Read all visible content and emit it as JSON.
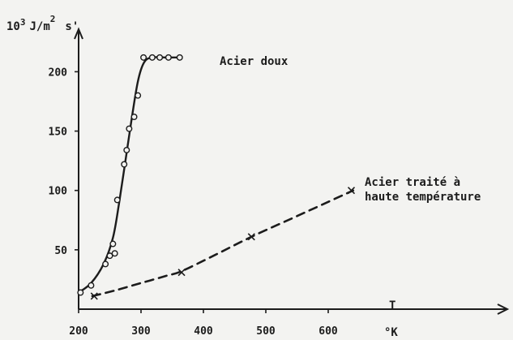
{
  "chart_data": {
    "type": "line",
    "xlabel": "T",
    "xunit": "°K",
    "ylabel_prefix": "10",
    "ylabel_exp": "3",
    "ylabel_unit": "J/m",
    "ylabel_unit_exp": "2",
    "ylabel_suffix": "s'",
    "xlim": [
      200,
      660
    ],
    "ylim": [
      0,
      220
    ],
    "x_ticks": [
      200,
      300,
      400,
      500,
      600
    ],
    "y_ticks": [
      50,
      100,
      150,
      200
    ],
    "grid": false,
    "series": [
      {
        "name": "Acier doux",
        "line_style": "solid",
        "marker": "circle",
        "points": [
          [
            203,
            14
          ],
          [
            220,
            20
          ],
          [
            243,
            38
          ],
          [
            250,
            45
          ],
          [
            255,
            55
          ],
          [
            258,
            47
          ],
          [
            262,
            92
          ],
          [
            273,
            122
          ],
          [
            277,
            134
          ],
          [
            281,
            152
          ],
          [
            289,
            162
          ],
          [
            295,
            180
          ],
          [
            304,
            212
          ],
          [
            318,
            212
          ],
          [
            330,
            212
          ],
          [
            344,
            212
          ],
          [
            362,
            212
          ]
        ],
        "curve": [
          [
            200,
            14
          ],
          [
            220,
            22
          ],
          [
            240,
            38
          ],
          [
            255,
            60
          ],
          [
            265,
            90
          ],
          [
            275,
            125
          ],
          [
            285,
            160
          ],
          [
            295,
            192
          ],
          [
            305,
            208
          ],
          [
            318,
            212
          ],
          [
            340,
            212
          ],
          [
            365,
            212
          ]
        ]
      },
      {
        "name": "Acier traité à haute température",
        "name_line1": "Acier traité à",
        "name_line2": "haute température",
        "line_style": "dashed",
        "marker": "x",
        "points": [
          [
            225,
            11
          ],
          [
            365,
            31
          ],
          [
            477,
            61
          ],
          [
            637,
            100
          ]
        ],
        "curve": [
          [
            222,
            11
          ],
          [
            260,
            16
          ],
          [
            300,
            22
          ],
          [
            340,
            28
          ],
          [
            365,
            32
          ],
          [
            420,
            46
          ],
          [
            477,
            61
          ],
          [
            540,
            76
          ],
          [
            590,
            88
          ],
          [
            640,
            100
          ]
        ]
      }
    ]
  }
}
